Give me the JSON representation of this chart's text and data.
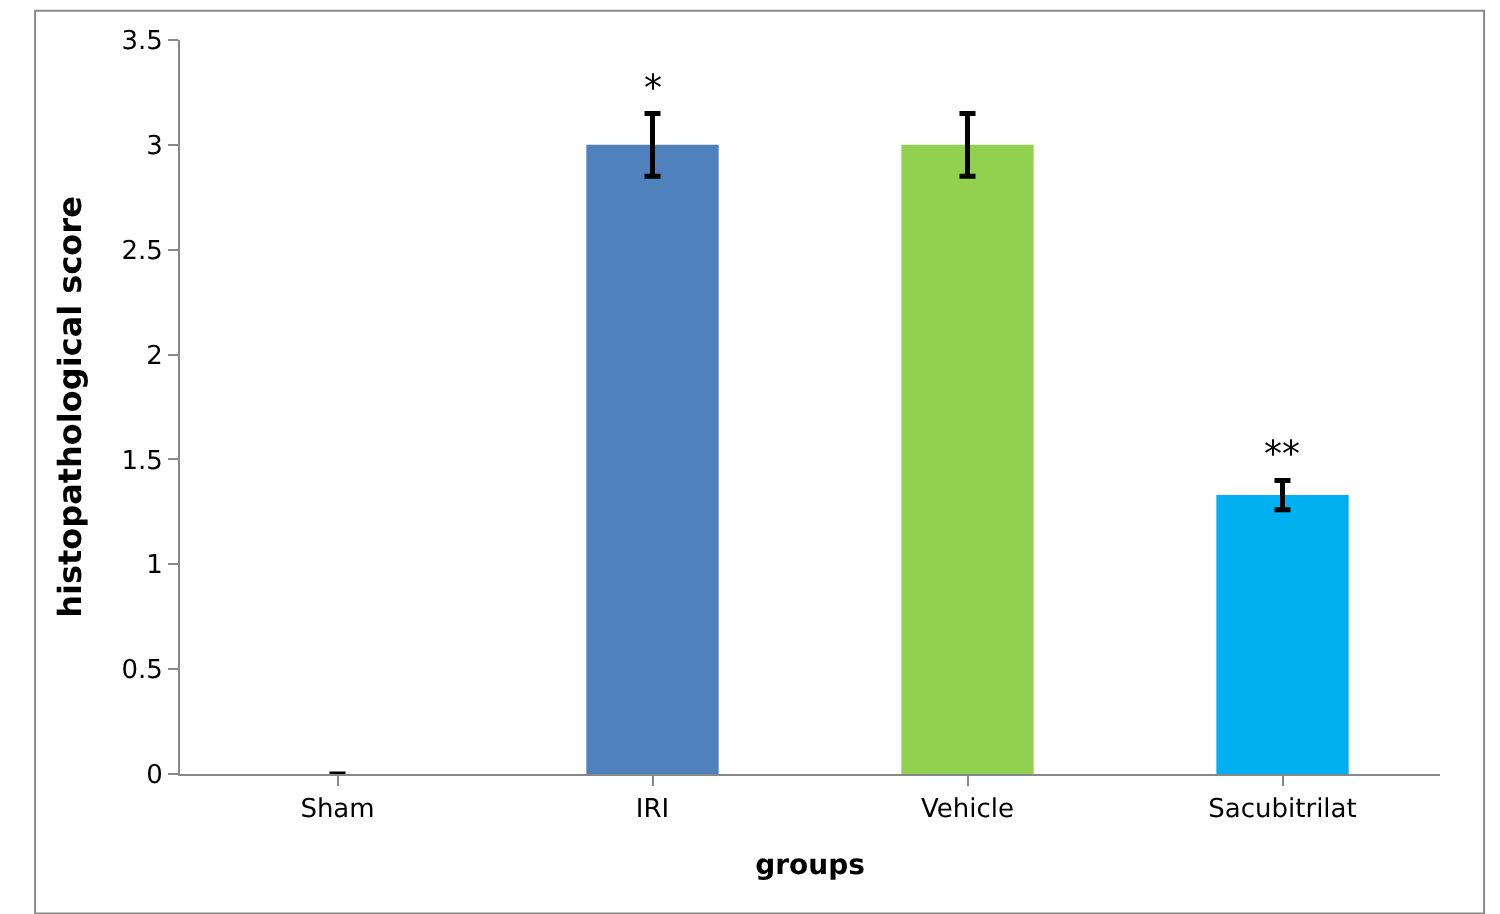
{
  "chart_data": {
    "type": "bar",
    "xlabel": "groups",
    "ylabel": "histopathological score",
    "categories": [
      "Sham",
      "IRI",
      "Vehicle",
      "Sacubitrilat"
    ],
    "values": [
      0,
      3,
      3,
      1.33
    ],
    "errors": [
      0,
      0.15,
      0.15,
      0.07
    ],
    "colors": [
      "#4f81bd",
      "#4f81bd",
      "#92d050",
      "#00b0f0"
    ],
    "ylim": [
      0,
      3.5
    ],
    "yticks": [
      0,
      0.5,
      1,
      1.5,
      2,
      2.5,
      3,
      3.5
    ],
    "annotations": [
      {
        "text": "*",
        "x": "IRI",
        "y": 3.15
      },
      {
        "text": "**",
        "x": "Sacubitrilat",
        "y": 1.4
      }
    ]
  }
}
